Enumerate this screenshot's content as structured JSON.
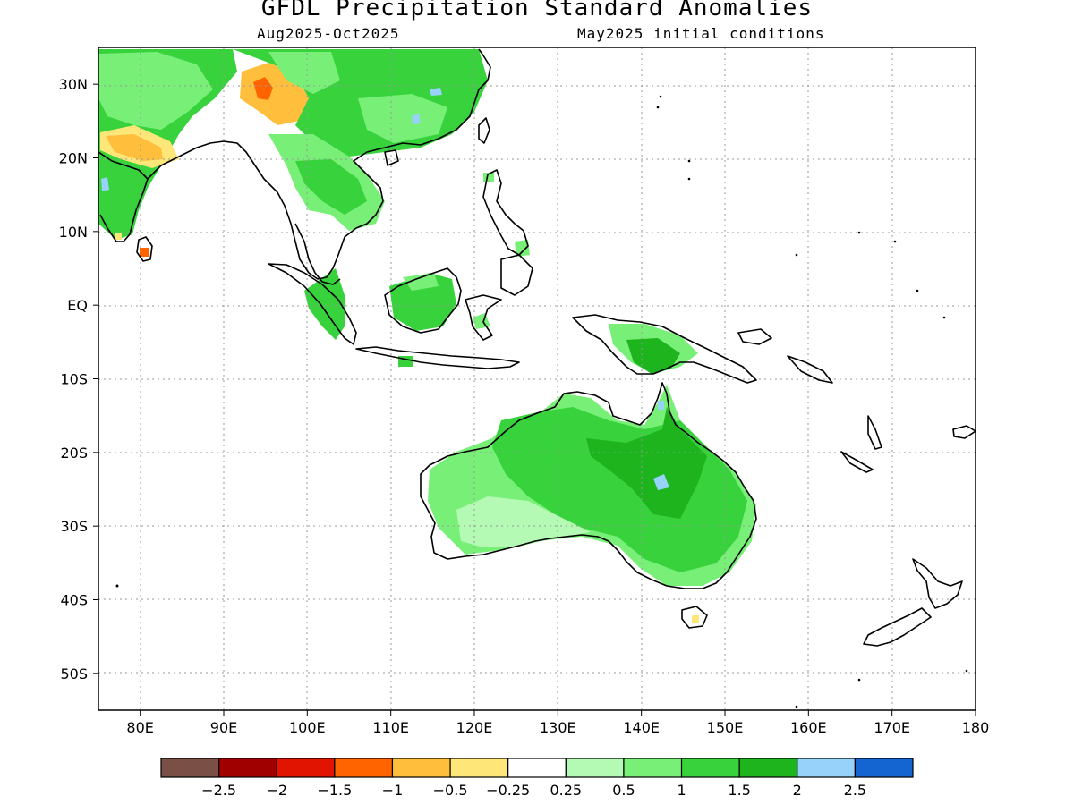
{
  "title": "GFDL Precipitation Standard Anomalies",
  "subtitle_left": "Aug2025-Oct2025",
  "subtitle_right": "May2025 initial conditions",
  "map": {
    "region": "Maritime Continent, Southeast Asia and Australia",
    "lon_range": [
      75,
      180
    ],
    "lat_range": [
      -55,
      35
    ],
    "grid": true,
    "lat_ticks": [
      {
        "value": 30,
        "label": "30N"
      },
      {
        "value": 20,
        "label": "20N"
      },
      {
        "value": 10,
        "label": "10N"
      },
      {
        "value": 0,
        "label": "EQ"
      },
      {
        "value": -10,
        "label": "10S"
      },
      {
        "value": -20,
        "label": "20S"
      },
      {
        "value": -30,
        "label": "30S"
      },
      {
        "value": -40,
        "label": "40S"
      },
      {
        "value": -50,
        "label": "50S"
      }
    ],
    "lon_ticks": [
      {
        "value": 80,
        "label": "80E"
      },
      {
        "value": 90,
        "label": "90E"
      },
      {
        "value": 100,
        "label": "100E"
      },
      {
        "value": 110,
        "label": "110E"
      },
      {
        "value": 120,
        "label": "120E"
      },
      {
        "value": 130,
        "label": "130E"
      },
      {
        "value": 140,
        "label": "140E"
      },
      {
        "value": 150,
        "label": "150E"
      },
      {
        "value": 160,
        "label": "160E"
      },
      {
        "value": 170,
        "label": "170E"
      },
      {
        "value": 180,
        "label": "180"
      }
    ]
  },
  "colorbar": {
    "colors": [
      "#7a4f45",
      "#a00000",
      "#e01400",
      "#ff6400",
      "#ffbe3c",
      "#ffe678",
      "#ffffff",
      "#b4fab4",
      "#78f078",
      "#37d23c",
      "#1eb41e",
      "#96d2fa",
      "#1464d2"
    ],
    "labels": [
      "-2.5",
      "-2",
      "-1.5",
      "-1",
      "-0.5",
      "-0.25",
      "0.25",
      "0.5",
      "1",
      "1.5",
      "2",
      "2.5"
    ]
  },
  "anomaly_regions": [
    {
      "name": "Australia interior",
      "class": "1 to 1.5",
      "color": "#37d23c"
    },
    {
      "name": "Australia east",
      "class": "1.5 to 2",
      "color": "#1eb41e"
    },
    {
      "name": "Australia southwest",
      "class": "0.5 to 1",
      "color": "#78f078"
    },
    {
      "name": "Australia south central",
      "class": "0.25 to 0.5",
      "color": "#b4fab4"
    },
    {
      "name": "Queensland spot",
      "class": "2 to 2.5",
      "color": "#96d2fa"
    },
    {
      "name": "Borneo",
      "class": "1 to 1.5",
      "color": "#37d23c"
    },
    {
      "name": "Sumatra",
      "class": "1 to 1.5",
      "color": "#37d23c"
    },
    {
      "name": "New Guinea",
      "class": "1.5 to 2",
      "color": "#1eb41e"
    },
    {
      "name": "Southeast Asia mainland",
      "class": "1 to 1.5",
      "color": "#37d23c"
    },
    {
      "name": "Southern China",
      "class": "1 to 1.5",
      "color": "#37d23c"
    },
    {
      "name": "Tibet / Himalaya",
      "class": "-0.5 to -1",
      "color": "#ffbe3c"
    },
    {
      "name": "Eastern Himalaya spot",
      "class": "-1 to -1.5",
      "color": "#ff6400"
    },
    {
      "name": "Northern India",
      "class": "-0.25 to -0.5",
      "color": "#ffe678"
    },
    {
      "name": "Western India",
      "class": "1 to 1.5",
      "color": "#37d23c"
    },
    {
      "name": "Sri Lanka",
      "class": "-1 to -1.5",
      "color": "#ff6400"
    },
    {
      "name": "Tasmania spot",
      "class": "-0.25 to -0.5",
      "color": "#ffe678"
    }
  ]
}
